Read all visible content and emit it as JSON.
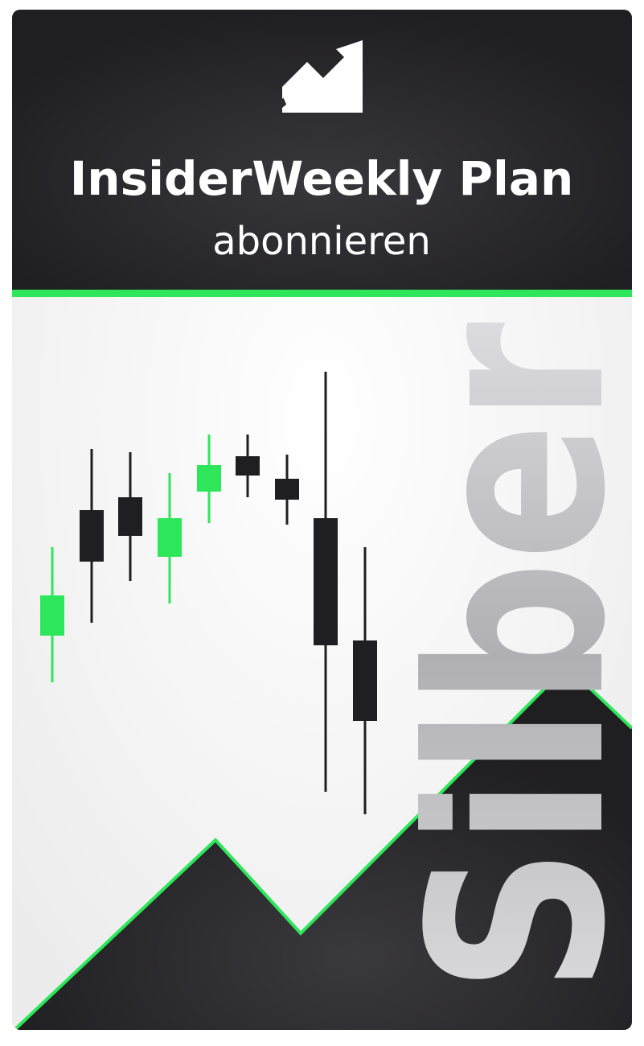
{
  "header": {
    "title": "InsiderWeekly Plan",
    "subtitle": "abonnieren"
  },
  "background_text": "Silber"
}
